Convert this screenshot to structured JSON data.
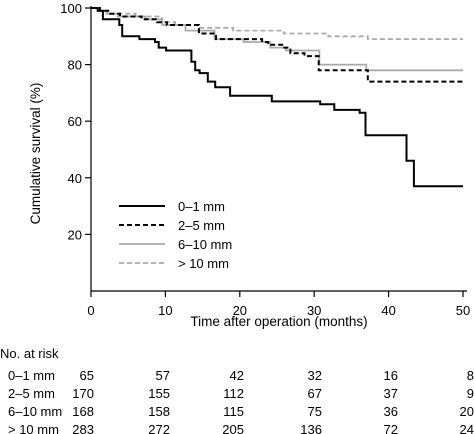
{
  "chart_data": {
    "type": "line",
    "title": "",
    "xlabel": "Time after operation (months)",
    "ylabel": "Cumulative survival (%)",
    "xlim": [
      0,
      50
    ],
    "ylim": [
      0,
      100
    ],
    "xticks": [
      "0",
      "10",
      "20",
      "30",
      "40",
      "50"
    ],
    "yticks": [
      "20",
      "40",
      "60",
      "80",
      "100"
    ],
    "grid": false,
    "legend_position": "bottom-left",
    "series": [
      {
        "name": "0–1 mm",
        "style": "solid",
        "color": "#000000",
        "points": [
          [
            0,
            100
          ],
          [
            0.9,
            99
          ],
          [
            1.6,
            96
          ],
          [
            3.8,
            94
          ],
          [
            4.2,
            90
          ],
          [
            6.5,
            89
          ],
          [
            8.6,
            88
          ],
          [
            9.1,
            86
          ],
          [
            10.1,
            85
          ],
          [
            13.5,
            81
          ],
          [
            14,
            78
          ],
          [
            14.6,
            77
          ],
          [
            15.7,
            74
          ],
          [
            16.7,
            72
          ],
          [
            18.7,
            69
          ],
          [
            24,
            69
          ],
          [
            24.3,
            67
          ],
          [
            30.8,
            66
          ],
          [
            32.7,
            64
          ],
          [
            36.1,
            63
          ],
          [
            36.9,
            55
          ],
          [
            42.2,
            55
          ],
          [
            42.4,
            46
          ],
          [
            43.2,
            46
          ],
          [
            43.4,
            37
          ],
          [
            50,
            37
          ]
        ]
      },
      {
        "name": "2–5 mm",
        "style": "dashed",
        "color": "#000000",
        "points": [
          [
            0,
            100
          ],
          [
            1.2,
            99
          ],
          [
            2.3,
            98
          ],
          [
            3.9,
            97
          ],
          [
            6.8,
            96
          ],
          [
            8.9,
            95
          ],
          [
            10.2,
            94
          ],
          [
            14.5,
            91
          ],
          [
            16.8,
            89
          ],
          [
            23,
            88
          ],
          [
            23.8,
            87
          ],
          [
            26,
            86
          ],
          [
            26.8,
            84
          ],
          [
            28.7,
            83
          ],
          [
            30.6,
            78
          ],
          [
            36.8,
            78
          ],
          [
            37.2,
            74
          ],
          [
            50,
            74
          ]
        ]
      },
      {
        "name": "6–10 mm",
        "style": "solid",
        "color": "#aaaaaa",
        "points": [
          [
            0,
            100
          ],
          [
            1,
            99
          ],
          [
            2.1,
            98
          ],
          [
            3.6,
            97
          ],
          [
            7.3,
            96
          ],
          [
            9.6,
            94
          ],
          [
            12.7,
            92
          ],
          [
            16.6,
            89
          ],
          [
            20.5,
            88
          ],
          [
            24.1,
            86
          ],
          [
            26.2,
            85
          ],
          [
            30.7,
            80
          ],
          [
            36.6,
            80
          ],
          [
            37,
            78
          ],
          [
            50,
            78
          ]
        ]
      },
      {
        "name": "> 10 mm",
        "style": "dashed",
        "color": "#aaaaaa",
        "points": [
          [
            0,
            100
          ],
          [
            0.9,
            99
          ],
          [
            2.6,
            98
          ],
          [
            6,
            97
          ],
          [
            9.5,
            95
          ],
          [
            11.3,
            94
          ],
          [
            14.5,
            93
          ],
          [
            19.1,
            92
          ],
          [
            25.9,
            91
          ],
          [
            31.9,
            90
          ],
          [
            36.9,
            90
          ],
          [
            37.2,
            89
          ],
          [
            50,
            89
          ]
        ]
      }
    ],
    "risk_table": {
      "header": "No. at risk",
      "rows": [
        {
          "label": "0–1 mm",
          "values": [
            "65",
            "57",
            "42",
            "32",
            "16",
            "8"
          ]
        },
        {
          "label": "2–5 mm",
          "values": [
            "170",
            "155",
            "112",
            "67",
            "37",
            "9"
          ]
        },
        {
          "label": "6–10 mm",
          "values": [
            "168",
            "158",
            "115",
            "75",
            "36",
            "20"
          ]
        },
        {
          "label": "> 10 mm",
          "values": [
            "283",
            "272",
            "205",
            "136",
            "72",
            "24"
          ]
        }
      ]
    }
  }
}
